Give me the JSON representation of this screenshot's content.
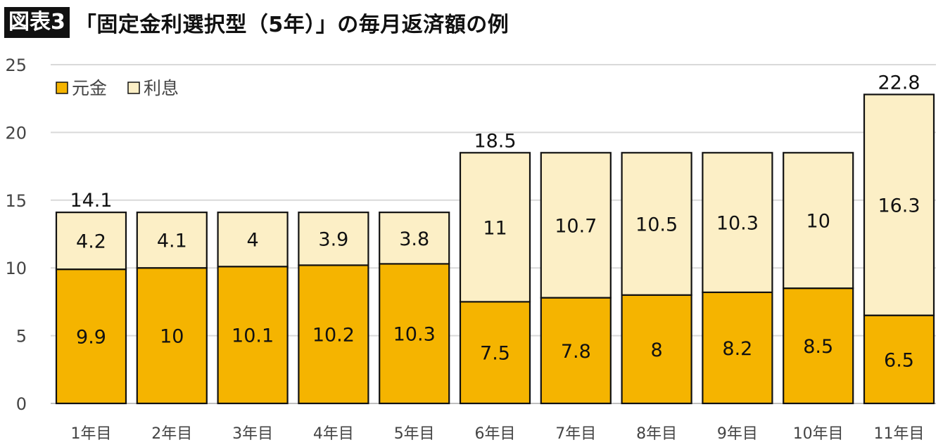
{
  "header": {
    "badge": "図表3",
    "title": "「固定金利選択型（5年）」の毎月返済額の例"
  },
  "colors": {
    "principal": "#F5B400",
    "interest": "#FCEFC6",
    "border": "#111111",
    "grid": "#D9D9D9"
  },
  "chart_data": {
    "type": "bar",
    "stacked": true,
    "categories": [
      "1年目",
      "2年目",
      "3年目",
      "4年目",
      "5年目",
      "6年目",
      "7年目",
      "8年目",
      "9年目",
      "10年目",
      "11年目"
    ],
    "series": [
      {
        "name": "元金",
        "values": [
          9.9,
          10,
          10.1,
          10.2,
          10.3,
          7.5,
          7.8,
          8,
          8.2,
          8.5,
          6.5
        ]
      },
      {
        "name": "利息",
        "values": [
          4.2,
          4.1,
          4,
          3.9,
          3.8,
          11,
          10.7,
          10.5,
          10.3,
          10,
          16.3
        ]
      }
    ],
    "totals": [
      {
        "index": 0,
        "label": "14.1"
      },
      {
        "index": 5,
        "label": "18.5"
      },
      {
        "index": 10,
        "label": "22.8"
      }
    ],
    "ylim": [
      0,
      25
    ],
    "yticks": [
      "0",
      "5",
      "10",
      "15",
      "20",
      "25"
    ],
    "grid": true,
    "legend_position": "top-left"
  }
}
